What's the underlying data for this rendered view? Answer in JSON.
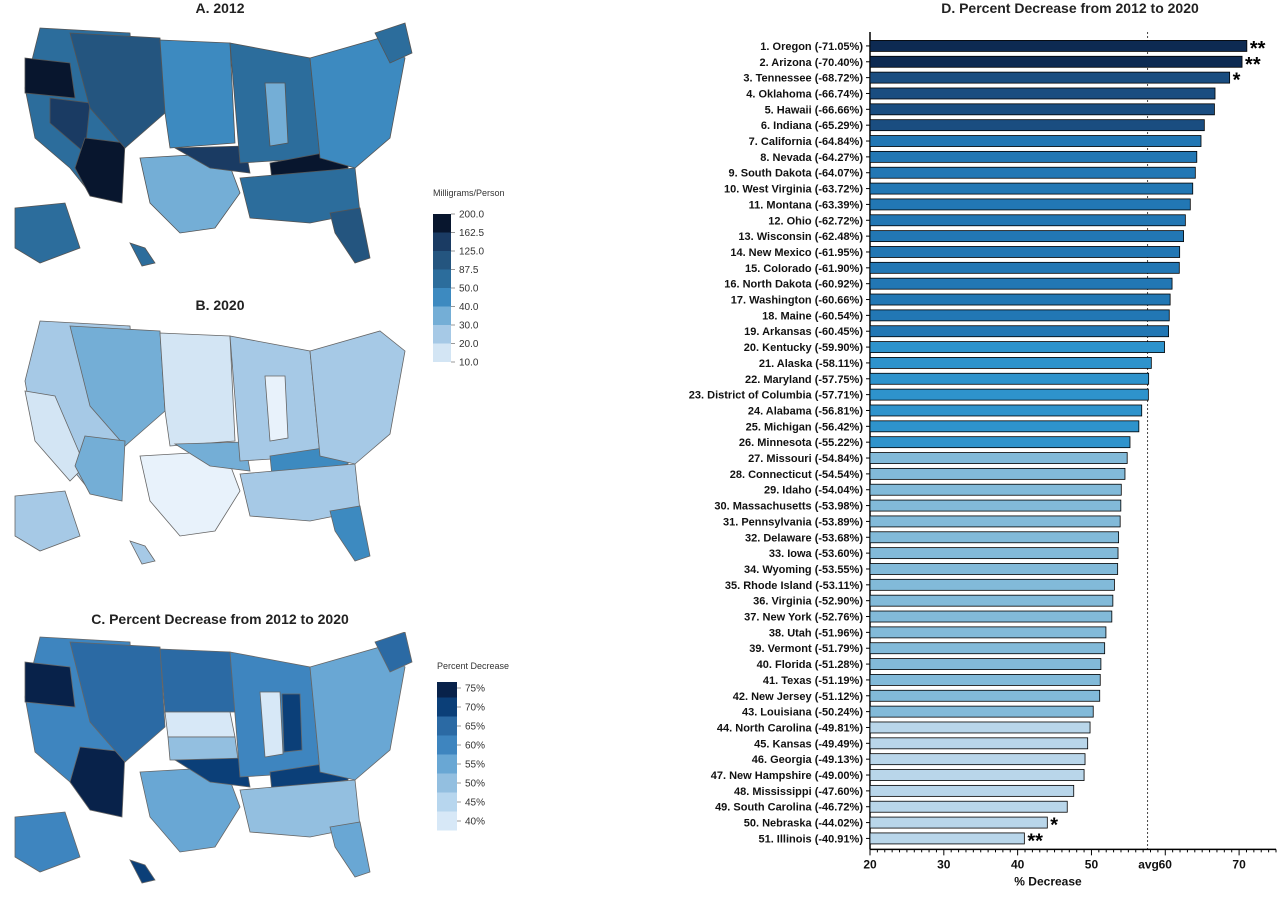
{
  "panels": {
    "a_title": "A. 2012",
    "b_title": "B. 2020",
    "c_title": "C. Percent Decrease from 2012 to 2020",
    "d_title": "D. Percent Decrease from 2012 to 2020"
  },
  "legend_mg": {
    "title": "Milligrams/Person",
    "ticks": [
      "200.0",
      "162.5",
      "125.0",
      "87.5",
      "50.0",
      "40.0",
      "30.0",
      "20.0",
      "10.0"
    ],
    "colors": [
      "#08162e",
      "#1a3b63",
      "#24557f",
      "#2c6d9c",
      "#3d8ac0",
      "#74aed6",
      "#a6c9e6",
      "#d3e5f4",
      "#f2f8fd"
    ]
  },
  "legend_pct": {
    "title": "Percent Decrease",
    "ticks": [
      "75%",
      "70%",
      "65%",
      "60%",
      "55%",
      "50%",
      "45%",
      "40%"
    ],
    "colors": [
      "#08224a",
      "#0b3f78",
      "#2b6aa4",
      "#3e85bf",
      "#69a7d4",
      "#93bfe0",
      "#b7d6ee",
      "#d7e8f7"
    ]
  },
  "chart_data": {
    "type": "bar",
    "orientation": "horizontal",
    "title": "D. Percent Decrease from 2012 to 2020",
    "xlabel": "% Decrease",
    "xlim": [
      20,
      75
    ],
    "xticks": [
      20,
      30,
      40,
      50,
      60,
      70
    ],
    "avg_label": "avg",
    "avg": 57.6,
    "categories": [
      "1. Oregon (-71.05%)",
      "2. Arizona (-70.40%)",
      "3. Tennessee (-68.72%)",
      "4. Oklahoma (-66.74%)",
      "5. Hawaii (-66.66%)",
      "6. Indiana (-65.29%)",
      "7. California (-64.84%)",
      "8. Nevada (-64.27%)",
      "9. South Dakota (-64.07%)",
      "10. West Virginia (-63.72%)",
      "11. Montana (-63.39%)",
      "12. Ohio (-62.72%)",
      "13. Wisconsin (-62.48%)",
      "14. New Mexico (-61.95%)",
      "15. Colorado (-61.90%)",
      "16. North Dakota (-60.92%)",
      "17. Washington (-60.66%)",
      "18. Maine (-60.54%)",
      "19. Arkansas (-60.45%)",
      "20. Kentucky (-59.90%)",
      "21. Alaska (-58.11%)",
      "22. Maryland (-57.75%)",
      "23. District of Columbia (-57.71%)",
      "24. Alabama (-56.81%)",
      "25. Michigan (-56.42%)",
      "26. Minnesota (-55.22%)",
      "27. Missouri (-54.84%)",
      "28. Connecticut (-54.54%)",
      "29. Idaho (-54.04%)",
      "30. Massachusetts (-53.98%)",
      "31. Pennsylvania (-53.89%)",
      "32. Delaware (-53.68%)",
      "33. Iowa (-53.60%)",
      "34. Wyoming (-53.55%)",
      "35. Rhode Island (-53.11%)",
      "36. Virginia (-52.90%)",
      "37. New York (-52.76%)",
      "38. Utah (-51.96%)",
      "39. Vermont (-51.79%)",
      "40. Florida (-51.28%)",
      "41. Texas (-51.19%)",
      "42. New Jersey (-51.12%)",
      "43. Louisiana (-50.24%)",
      "44. North Carolina (-49.81%)",
      "45. Kansas (-49.49%)",
      "46. Georgia (-49.13%)",
      "47. New Hampshire (-49.00%)",
      "48. Mississippi (-47.60%)",
      "49. South Carolina (-46.72%)",
      "50. Nebraska (-44.02%)",
      "51. Illinois (-40.91%)"
    ],
    "values": [
      71.05,
      70.4,
      68.72,
      66.74,
      66.66,
      65.29,
      64.84,
      64.27,
      64.07,
      63.72,
      63.39,
      62.72,
      62.48,
      61.95,
      61.9,
      60.92,
      60.66,
      60.54,
      60.45,
      59.9,
      58.11,
      57.75,
      57.71,
      56.81,
      56.42,
      55.22,
      54.84,
      54.54,
      54.04,
      53.98,
      53.89,
      53.68,
      53.6,
      53.55,
      53.11,
      52.9,
      52.76,
      51.96,
      51.79,
      51.28,
      51.19,
      51.12,
      50.24,
      49.81,
      49.49,
      49.13,
      49.0,
      47.6,
      46.72,
      44.02,
      40.91
    ],
    "significance": [
      "**",
      "**",
      "*",
      "",
      "",
      "",
      "",
      "",
      "",
      "",
      "",
      "",
      "",
      "",
      "",
      "",
      "",
      "",
      "",
      "",
      "",
      "",
      "",
      "",
      "",
      "",
      "",
      "",
      "",
      "",
      "",
      "",
      "",
      "",
      "",
      "",
      "",
      "",
      "",
      "",
      "",
      "",
      "",
      "",
      "",
      "",
      "",
      "",
      "",
      "*",
      "**"
    ],
    "colors": {
      "ge70": "#0d2a52",
      "ge65": "#1a4d80",
      "ge60": "#2277b4",
      "ge55": "#2e93cc",
      "ge50": "#82bad9",
      "lt50": "#b9d6ea"
    }
  }
}
